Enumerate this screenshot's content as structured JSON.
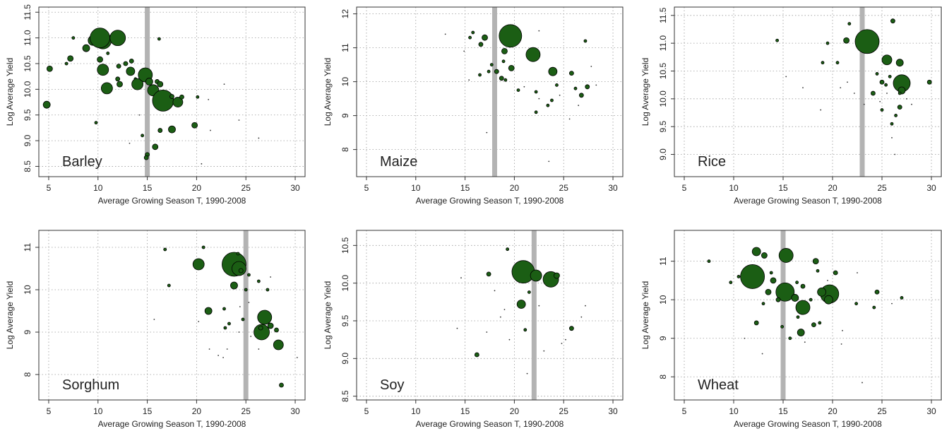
{
  "chart_data": [
    {
      "type": "scatter",
      "label": "Barley",
      "xlabel": "Average Growing Season T, 1990-2008",
      "ylabel": "Log Average Yield",
      "xlim": [
        4,
        31
      ],
      "ylim": [
        8.3,
        11.6
      ],
      "xticks": [
        5,
        10,
        15,
        20,
        25,
        30
      ],
      "yticks": [
        8.5,
        9.0,
        9.5,
        10.0,
        10.5,
        11.0,
        11.5
      ],
      "ytick_labels": [
        "8.5",
        "9.0",
        "9.5",
        "10.0",
        "10.5",
        "11.0",
        "11.5"
      ],
      "threshold_x": 15,
      "grid": true,
      "marker_color": "#1b5e14",
      "threshold_color": "#b3b3b3",
      "points": [
        [
          4.8,
          9.7,
          5
        ],
        [
          5.1,
          10.4,
          4
        ],
        [
          6.8,
          10.5,
          2
        ],
        [
          7.2,
          10.6,
          4
        ],
        [
          7.5,
          11.0,
          2
        ],
        [
          8.8,
          10.8,
          5
        ],
        [
          9.5,
          10.95,
          7
        ],
        [
          10.5,
          10.95,
          12
        ],
        [
          11.0,
          10.7,
          2
        ],
        [
          10.2,
          10.58,
          4
        ],
        [
          10.5,
          10.38,
          8
        ],
        [
          10.9,
          10.02,
          8
        ],
        [
          12.1,
          10.45,
          3
        ],
        [
          12.0,
          10.2,
          3
        ],
        [
          12.2,
          10.1,
          4
        ],
        [
          12.8,
          10.5,
          3
        ],
        [
          13.3,
          10.35,
          6
        ],
        [
          13.4,
          10.55,
          3
        ],
        [
          13.8,
          10.2,
          2
        ],
        [
          14.0,
          10.1,
          8
        ],
        [
          14.8,
          10.28,
          10
        ],
        [
          15.2,
          10.15,
          5
        ],
        [
          15.6,
          9.98,
          8
        ],
        [
          16.0,
          10.15,
          3
        ],
        [
          16.3,
          10.1,
          4
        ],
        [
          16.6,
          9.78,
          15
        ],
        [
          17.5,
          9.86,
          3
        ],
        [
          18.1,
          9.75,
          7
        ],
        [
          18.5,
          9.85,
          3
        ],
        [
          17.5,
          9.22,
          5
        ],
        [
          15.8,
          8.88,
          4
        ],
        [
          16.3,
          9.2,
          3
        ],
        [
          15.0,
          8.73,
          3
        ],
        [
          14.9,
          8.67,
          3
        ],
        [
          14.2,
          9.5,
          1
        ],
        [
          14.5,
          9.1,
          2
        ],
        [
          19.8,
          9.3,
          4
        ],
        [
          20.1,
          9.85,
          2
        ],
        [
          21.2,
          9.8,
          1
        ],
        [
          22.8,
          10.1,
          1
        ],
        [
          20.5,
          8.55,
          1
        ],
        [
          21.4,
          9.2,
          1
        ],
        [
          24.3,
          9.4,
          1
        ],
        [
          26.3,
          9.05,
          1
        ],
        [
          9.8,
          9.35,
          2
        ],
        [
          13.2,
          8.95,
          1
        ],
        [
          8.7,
          10.75,
          1
        ],
        [
          11.3,
          10.9,
          1
        ],
        [
          11.8,
          11.1,
          1
        ],
        [
          16.2,
          10.98,
          2
        ],
        [
          10.2,
          11.0,
          14
        ],
        [
          12.0,
          11.0,
          11
        ]
      ]
    },
    {
      "type": "scatter",
      "label": "Maize",
      "xlabel": "Average Growing Season T, 1990-2008",
      "ylabel": "Log Average Yield",
      "xlim": [
        4,
        31
      ],
      "ylim": [
        7.2,
        12.2
      ],
      "xticks": [
        5,
        10,
        15,
        20,
        25,
        30
      ],
      "yticks": [
        8,
        9,
        10,
        11,
        12
      ],
      "ytick_labels": [
        "8",
        "9",
        "10",
        "11",
        "12"
      ],
      "threshold_x": 18,
      "grid": true,
      "marker_color": "#1b5e14",
      "threshold_color": "#b3b3b3",
      "points": [
        [
          19.6,
          11.35,
          16
        ],
        [
          21.9,
          10.8,
          10
        ],
        [
          23.9,
          10.3,
          6
        ],
        [
          17.0,
          11.3,
          4
        ],
        [
          16.6,
          11.1,
          3
        ],
        [
          15.8,
          11.45,
          2
        ],
        [
          15.5,
          11.3,
          2
        ],
        [
          16.5,
          10.2,
          2
        ],
        [
          17.4,
          10.3,
          2
        ],
        [
          17.7,
          10.5,
          2
        ],
        [
          18.2,
          10.3,
          3
        ],
        [
          19.0,
          10.9,
          4
        ],
        [
          19.7,
          10.4,
          4
        ],
        [
          18.7,
          10.1,
          3
        ],
        [
          19.1,
          10.05,
          2
        ],
        [
          18.9,
          10.6,
          2
        ],
        [
          20.4,
          9.75,
          2
        ],
        [
          22.2,
          9.7,
          2
        ],
        [
          22.5,
          9.5,
          1
        ],
        [
          23.4,
          9.3,
          2
        ],
        [
          23.8,
          9.45,
          2
        ],
        [
          24.3,
          9.9,
          2
        ],
        [
          24.6,
          9.6,
          1
        ],
        [
          25.8,
          10.25,
          3
        ],
        [
          26.2,
          9.8,
          2
        ],
        [
          27.4,
          9.85,
          3
        ],
        [
          26.8,
          9.6,
          3
        ],
        [
          27.8,
          10.45,
          1
        ],
        [
          27.2,
          11.2,
          2
        ],
        [
          22.5,
          11.5,
          1
        ],
        [
          22.2,
          9.1,
          2
        ],
        [
          25.6,
          8.9,
          1
        ],
        [
          23.5,
          7.65,
          1
        ],
        [
          17.2,
          8.5,
          1
        ],
        [
          15.4,
          10.05,
          1
        ],
        [
          21.0,
          9.85,
          1
        ],
        [
          28.3,
          9.9,
          1
        ],
        [
          26.5,
          9.3,
          1
        ],
        [
          13.0,
          11.4,
          1
        ],
        [
          14.9,
          10.9,
          1
        ]
      ]
    },
    {
      "type": "scatter",
      "label": "Rice",
      "xlabel": "Average Growing Season T, 1990-2008",
      "ylabel": "Log Average Yield",
      "xlim": [
        4,
        31
      ],
      "ylim": [
        8.6,
        11.65
      ],
      "xticks": [
        5,
        10,
        15,
        20,
        25,
        30
      ],
      "yticks": [
        9.0,
        9.5,
        10.0,
        10.5,
        11.0,
        11.5
      ],
      "ytick_labels": [
        "9.0",
        "9.5",
        "10.0",
        "10.5",
        "11.0",
        "11.5"
      ],
      "threshold_x": 23,
      "grid": true,
      "marker_color": "#1b5e14",
      "threshold_color": "#b3b3b3",
      "points": [
        [
          23.5,
          11.03,
          17
        ],
        [
          25.5,
          10.7,
          7
        ],
        [
          26.8,
          10.65,
          5
        ],
        [
          27.0,
          10.28,
          12
        ],
        [
          27.0,
          10.15,
          5
        ],
        [
          25.4,
          10.25,
          2
        ],
        [
          24.5,
          10.45,
          2
        ],
        [
          25.0,
          10.3,
          3
        ],
        [
          24.1,
          10.1,
          3
        ],
        [
          25.0,
          9.8,
          2
        ],
        [
          25.8,
          10.4,
          2
        ],
        [
          26.4,
          9.7,
          2
        ],
        [
          26.0,
          9.55,
          2
        ],
        [
          26.8,
          9.85,
          3
        ],
        [
          26.8,
          10.1,
          2
        ],
        [
          29.8,
          10.3,
          3
        ],
        [
          28.0,
          9.9,
          1
        ],
        [
          26.1,
          11.4,
          3
        ],
        [
          21.4,
          11.05,
          4
        ],
        [
          21.7,
          11.35,
          2
        ],
        [
          20.5,
          10.65,
          2
        ],
        [
          19.0,
          10.65,
          2
        ],
        [
          19.5,
          11.0,
          2
        ],
        [
          14.4,
          11.05,
          2
        ],
        [
          15.3,
          10.4,
          1
        ],
        [
          21.5,
          10.3,
          1
        ],
        [
          22.2,
          10.1,
          1
        ],
        [
          23.2,
          9.9,
          1
        ],
        [
          26.0,
          9.3,
          1
        ],
        [
          25.5,
          10.1,
          1
        ],
        [
          26.3,
          9.0,
          1
        ],
        [
          24.8,
          9.95,
          1
        ],
        [
          27.5,
          10.0,
          1
        ],
        [
          20.8,
          10.2,
          1
        ],
        [
          17.0,
          10.2,
          1
        ],
        [
          18.8,
          9.8,
          1
        ]
      ]
    },
    {
      "type": "scatter",
      "label": "Sorghum",
      "xlabel": "Average Growing Season T, 1990-2008",
      "ylabel": "Log Average Yield",
      "xlim": [
        4,
        31
      ],
      "ylim": [
        7.4,
        11.4
      ],
      "xticks": [
        5,
        10,
        15,
        20,
        25,
        30
      ],
      "yticks": [
        8,
        9,
        10,
        11
      ],
      "ytick_labels": [
        "8",
        "9",
        "10",
        "11"
      ],
      "threshold_x": 25,
      "grid": true,
      "marker_color": "#1b5e14",
      "threshold_color": "#b3b3b3",
      "points": [
        [
          23.8,
          10.6,
          17
        ],
        [
          24.3,
          10.5,
          10
        ],
        [
          24.2,
          10.85,
          2
        ],
        [
          20.2,
          10.6,
          8
        ],
        [
          20.7,
          11.0,
          2
        ],
        [
          16.8,
          10.95,
          2
        ],
        [
          17.2,
          10.1,
          2
        ],
        [
          21.2,
          9.5,
          5
        ],
        [
          23.8,
          10.1,
          5
        ],
        [
          24.5,
          10.45,
          3
        ],
        [
          25.3,
          10.35,
          2
        ],
        [
          25.0,
          10.0,
          2
        ],
        [
          25.3,
          9.7,
          1
        ],
        [
          24.4,
          9.6,
          1
        ],
        [
          26.3,
          10.2,
          2
        ],
        [
          27.2,
          10.0,
          2
        ],
        [
          26.9,
          9.35,
          10
        ],
        [
          26.6,
          9.0,
          11
        ],
        [
          27.5,
          9.15,
          4
        ],
        [
          28.1,
          9.05,
          3
        ],
        [
          28.3,
          8.7,
          7
        ],
        [
          28.6,
          7.75,
          3
        ],
        [
          23.3,
          9.2,
          2
        ],
        [
          22.9,
          9.1,
          2
        ],
        [
          22.8,
          9.55,
          2
        ],
        [
          24.3,
          9.0,
          1
        ],
        [
          24.7,
          9.3,
          2
        ],
        [
          26.3,
          8.6,
          1
        ],
        [
          25.5,
          8.9,
          1
        ],
        [
          26.5,
          9.1,
          3
        ],
        [
          30.2,
          8.4,
          1
        ],
        [
          22.2,
          8.45,
          1
        ],
        [
          21.3,
          8.6,
          1
        ],
        [
          20.2,
          9.25,
          1
        ],
        [
          15.7,
          9.3,
          1
        ],
        [
          27.5,
          10.3,
          1
        ],
        [
          23.1,
          8.6,
          1
        ],
        [
          22.7,
          8.4,
          1
        ]
      ]
    },
    {
      "type": "scatter",
      "label": "Soy",
      "xlabel": "Average Growing Season T, 1990-2008",
      "ylabel": "Log Average Yield",
      "xlim": [
        4,
        31
      ],
      "ylim": [
        8.45,
        10.7
      ],
      "xticks": [
        5,
        10,
        15,
        20,
        25,
        30
      ],
      "yticks": [
        8.5,
        9.0,
        9.5,
        10.0,
        10.5
      ],
      "ytick_labels": [
        "8.5",
        "9.0",
        "9.5",
        "10.0",
        "10.5"
      ],
      "threshold_x": 22,
      "grid": true,
      "marker_color": "#1b5e14",
      "threshold_color": "#b3b3b3",
      "points": [
        [
          20.9,
          10.15,
          16
        ],
        [
          22.2,
          10.1,
          8
        ],
        [
          23.7,
          10.05,
          11
        ],
        [
          24.3,
          10.1,
          4
        ],
        [
          20.7,
          9.72,
          6
        ],
        [
          17.4,
          10.12,
          3
        ],
        [
          19.3,
          10.45,
          2
        ],
        [
          21.5,
          9.88,
          2
        ],
        [
          22.5,
          9.7,
          1
        ],
        [
          21.1,
          9.38,
          2
        ],
        [
          25.8,
          9.4,
          3
        ],
        [
          27.2,
          9.7,
          1
        ],
        [
          26.8,
          9.55,
          1
        ],
        [
          25.2,
          9.25,
          1
        ],
        [
          24.8,
          9.2,
          1
        ],
        [
          23.0,
          9.1,
          1
        ],
        [
          21.3,
          8.8,
          1
        ],
        [
          16.2,
          9.05,
          3
        ],
        [
          17.2,
          9.35,
          1
        ],
        [
          18.0,
          9.9,
          1
        ],
        [
          19.0,
          9.65,
          1
        ],
        [
          14.6,
          10.07,
          1
        ],
        [
          14.2,
          9.4,
          1
        ],
        [
          19.5,
          9.25,
          1
        ],
        [
          18.6,
          9.55,
          1
        ]
      ]
    },
    {
      "type": "scatter",
      "label": "Wheat",
      "xlabel": "Average Growing Season T, 1990-2008",
      "ylabel": "Log Average Yield",
      "xlim": [
        4,
        31
      ],
      "ylim": [
        7.4,
        11.8
      ],
      "xticks": [
        5,
        10,
        15,
        20,
        25,
        30
      ],
      "yticks": [
        8,
        9,
        10,
        11
      ],
      "ytick_labels": [
        "8",
        "9",
        "10",
        "11"
      ],
      "threshold_x": 15,
      "grid": true,
      "marker_color": "#1b5e14",
      "threshold_color": "#b3b3b3",
      "points": [
        [
          11.9,
          10.6,
          17
        ],
        [
          15.2,
          10.2,
          13
        ],
        [
          15.3,
          11.15,
          10
        ],
        [
          19.7,
          10.15,
          13
        ],
        [
          17.0,
          9.8,
          10
        ],
        [
          18.9,
          10.2,
          6
        ],
        [
          19.6,
          10.0,
          6
        ],
        [
          16.2,
          10.05,
          5
        ],
        [
          13.1,
          11.15,
          4
        ],
        [
          12.3,
          11.25,
          6
        ],
        [
          14.0,
          10.5,
          4
        ],
        [
          13.5,
          10.2,
          4
        ],
        [
          14.5,
          10.0,
          3
        ],
        [
          14.9,
          9.3,
          2
        ],
        [
          12.3,
          9.4,
          3
        ],
        [
          16.8,
          9.15,
          5
        ],
        [
          18.1,
          9.35,
          3
        ],
        [
          18.3,
          11.0,
          4
        ],
        [
          17.0,
          10.35,
          3
        ],
        [
          17.8,
          10.0,
          2
        ],
        [
          18.5,
          10.75,
          2
        ],
        [
          20.3,
          10.7,
          3
        ],
        [
          22.4,
          9.9,
          2
        ],
        [
          24.5,
          10.2,
          3
        ],
        [
          27.0,
          10.05,
          2
        ],
        [
          24.2,
          9.8,
          2
        ],
        [
          7.5,
          11.0,
          2
        ],
        [
          9.7,
          10.45,
          2
        ],
        [
          10.5,
          10.6,
          2
        ],
        [
          13.0,
          9.9,
          2
        ],
        [
          16.5,
          9.55,
          2
        ],
        [
          15.7,
          9.0,
          2
        ],
        [
          18.7,
          9.4,
          2
        ],
        [
          21.0,
          9.2,
          1
        ],
        [
          22.5,
          10.7,
          1
        ],
        [
          20.9,
          8.85,
          1
        ],
        [
          23.0,
          7.85,
          1
        ],
        [
          26.0,
          9.9,
          1
        ],
        [
          11.1,
          9.0,
          1
        ],
        [
          13.8,
          10.7,
          2
        ],
        [
          16.4,
          10.45,
          2
        ],
        [
          17.2,
          8.9,
          1
        ],
        [
          19.5,
          10.5,
          1
        ],
        [
          12.9,
          8.6,
          1
        ]
      ]
    }
  ]
}
